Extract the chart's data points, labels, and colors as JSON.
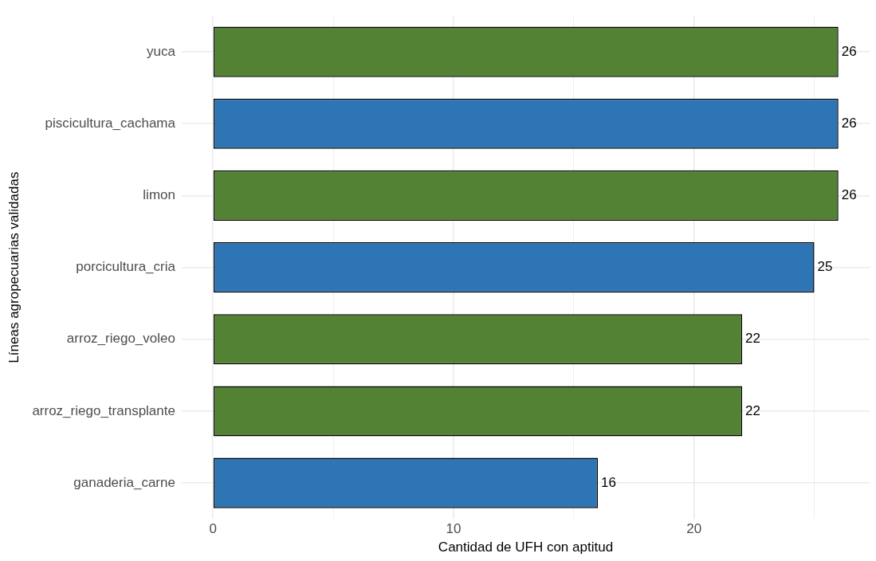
{
  "chart_data": {
    "type": "bar",
    "orientation": "horizontal",
    "xlabel": "Cantidad de UFH con aptitud",
    "ylabel": "Líneas agropecuarias validadas",
    "categories": [
      "yuca",
      "piscicultura_cachama",
      "limon",
      "porcicultura_cria",
      "arroz_riego_voleo",
      "arroz_riego_transplante",
      "ganaderia_carne"
    ],
    "values": [
      26,
      26,
      26,
      25,
      22,
      22,
      16
    ],
    "colors": [
      "#548235",
      "#2e75b6",
      "#548235",
      "#2e75b6",
      "#548235",
      "#548235",
      "#2e75b6"
    ],
    "xlim": [
      -1.3,
      27.3
    ],
    "xticks": [
      0,
      {
        "value": 5,
        "label": null
      },
      10,
      {
        "value": 15,
        "label": null
      },
      20,
      {
        "value": 25,
        "label": null
      }
    ],
    "grid": true,
    "data_labels": true
  }
}
